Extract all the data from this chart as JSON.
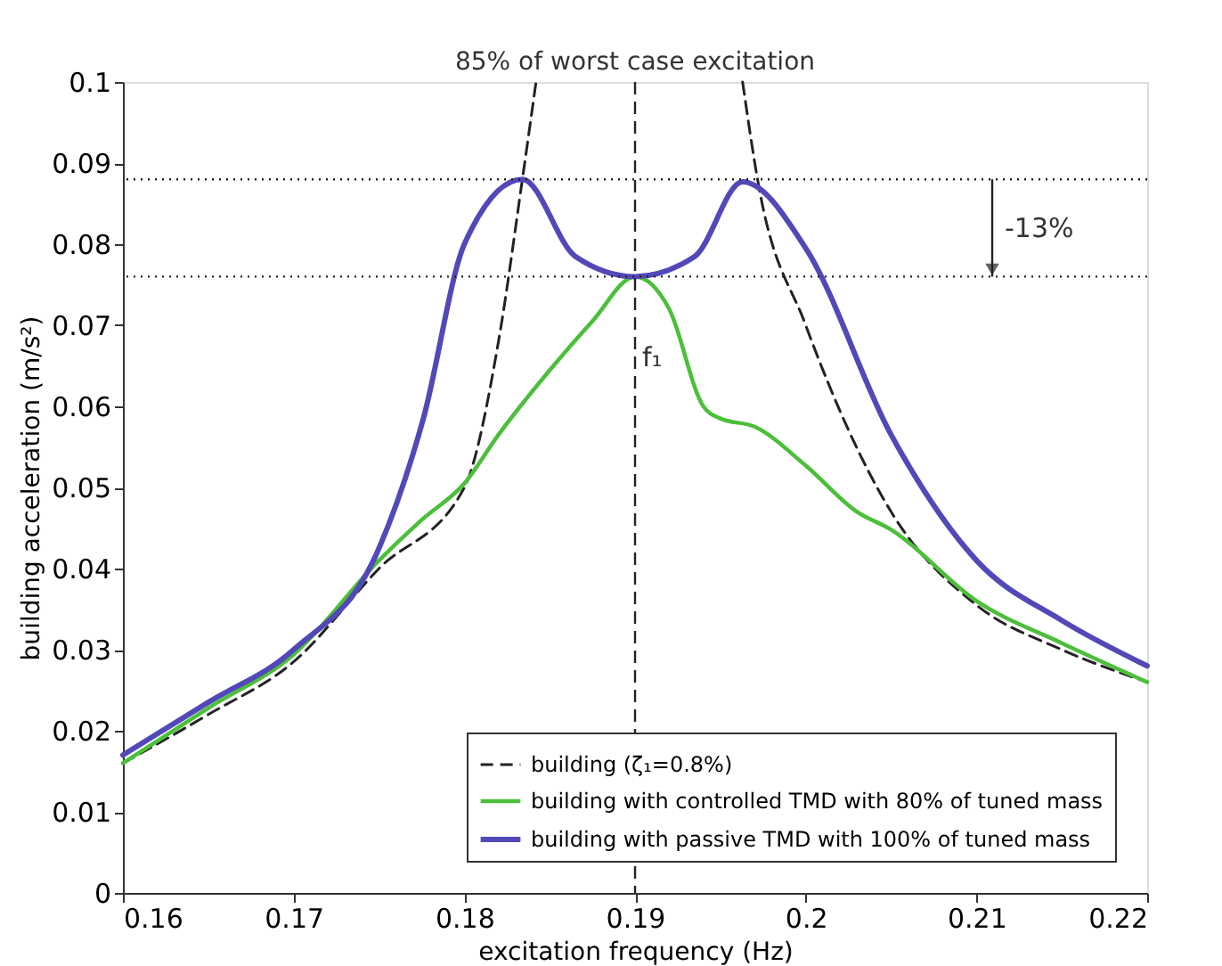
{
  "chart_data": {
    "type": "line",
    "xlabel": "excitation frequency (Hz)",
    "ylabel": "building acceleration (m/s²)",
    "xlim": [
      0.16,
      0.22
    ],
    "xticks": [
      0.16,
      0.17,
      0.18,
      0.19,
      0.2,
      0.21,
      0.22
    ],
    "ylim": [
      0,
      0.1
    ],
    "yticks": [
      0,
      0.01,
      0.02,
      0.03,
      0.04,
      0.05,
      0.06,
      0.07,
      0.08,
      0.09,
      0.1
    ],
    "grid": false,
    "legend": "bottom",
    "series": [
      {
        "name": "building (ζ₁=0.8%)",
        "color": "#222222",
        "line_style": "dashed",
        "x": [
          0.16,
          0.165,
          0.17,
          0.175,
          0.18,
          0.182,
          0.1834,
          0.1842,
          0.19,
          0.1963,
          0.1972,
          0.2,
          0.205,
          0.21,
          0.215,
          0.22
        ],
        "values": [
          0.016,
          0.022,
          0.0285,
          0.04,
          0.05,
          0.068,
          0.088,
          0.1,
          null,
          0.1,
          0.0877,
          0.07,
          0.047,
          0.0355,
          0.03,
          0.026
        ]
      },
      {
        "name": "building with controlled TMD with 80% of tuned mass",
        "color": "#4cbf3a",
        "line_style": "solid",
        "x": [
          0.16,
          0.165,
          0.17,
          0.175,
          0.1775,
          0.18,
          0.182,
          0.1849,
          0.1875,
          0.19,
          0.192,
          0.194,
          0.195,
          0.197,
          0.2,
          0.203,
          0.205,
          0.21,
          0.215,
          0.22
        ],
        "values": [
          0.016,
          0.0228,
          0.0294,
          0.041,
          0.046,
          0.0505,
          0.0565,
          0.0642,
          0.0705,
          0.076,
          0.072,
          0.06,
          0.0585,
          0.0575,
          0.0527,
          0.047,
          0.0448,
          0.036,
          0.0308,
          0.026
        ]
      },
      {
        "name": "building with passive TMD with 100% of tuned mass",
        "color": "#5248b8",
        "line_style": "solid",
        "x": [
          0.16,
          0.165,
          0.17,
          0.175,
          0.1776,
          0.18,
          0.1834,
          0.1865,
          0.19,
          0.1935,
          0.1963,
          0.2,
          0.205,
          0.21,
          0.215,
          0.22
        ],
        "values": [
          0.017,
          0.0235,
          0.03,
          0.0425,
          0.0585,
          0.08,
          0.088,
          0.0785,
          0.076,
          0.0785,
          0.0877,
          0.0795,
          0.0565,
          0.041,
          0.0336,
          0.028
        ]
      }
    ],
    "ref_lines": [
      {
        "axis": "x",
        "value": 0.19,
        "label": "85% of worst case excitation",
        "line_style": "dashed"
      },
      {
        "axis": "y",
        "value": 0.088,
        "label": null,
        "line_style": "dotted"
      },
      {
        "axis": "y",
        "value": 0.076,
        "label": null,
        "line_style": "dotted"
      }
    ],
    "annotations": [
      {
        "text": "f₁",
        "x": 0.19,
        "y": 0.066
      },
      "-13%"
    ]
  }
}
